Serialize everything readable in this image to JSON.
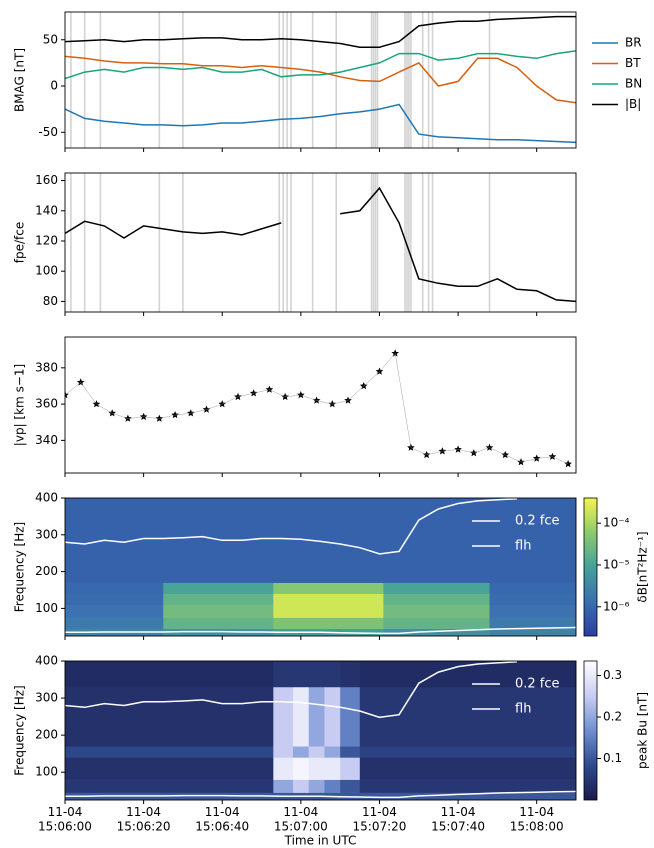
{
  "chart_data": [
    {
      "type": "line",
      "ylabel": "BMAG [nT]",
      "xlim": [
        0,
        130
      ],
      "ylim": [
        -67,
        80
      ],
      "yticks": [
        -50,
        0,
        50
      ],
      "legend": "outside right",
      "x": [
        0,
        5,
        10,
        15,
        20,
        25,
        30,
        35,
        40,
        45,
        50,
        55,
        60,
        65,
        70,
        75,
        80,
        85,
        90,
        95,
        100,
        105,
        110,
        115,
        120,
        125,
        130
      ],
      "series": [
        {
          "name": "BR",
          "color": "#1f77b4",
          "values": [
            -25,
            -35,
            -38,
            -40,
            -42,
            -42,
            -43,
            -42,
            -40,
            -40,
            -38,
            -36,
            -35,
            -33,
            -30,
            -28,
            -25,
            -20,
            -52,
            -55,
            -56,
            -57,
            -58,
            -58,
            -59,
            -60,
            -61
          ]
        },
        {
          "name": "BT",
          "color": "#d95f0e",
          "values": [
            32,
            30,
            27,
            25,
            25,
            24,
            24,
            22,
            22,
            20,
            22,
            20,
            18,
            15,
            10,
            6,
            5,
            15,
            25,
            0,
            5,
            30,
            30,
            20,
            0,
            -15,
            -18
          ]
        },
        {
          "name": "BN",
          "color": "#17a57a",
          "values": [
            8,
            15,
            18,
            15,
            20,
            20,
            18,
            20,
            15,
            15,
            18,
            10,
            12,
            12,
            15,
            20,
            25,
            35,
            35,
            28,
            30,
            35,
            35,
            32,
            30,
            35,
            38
          ]
        },
        {
          "name": "|B|",
          "color": "#000000",
          "values": [
            48,
            49,
            50,
            48,
            50,
            50,
            51,
            52,
            52,
            50,
            50,
            51,
            50,
            48,
            46,
            42,
            42,
            48,
            65,
            68,
            70,
            70,
            72,
            73,
            74,
            75,
            75
          ]
        }
      ],
      "shaded_times": [
        1.5,
        5,
        9,
        24,
        30,
        54.5,
        55.5,
        56.5,
        57.5,
        63,
        69,
        78,
        78.5,
        79,
        79.5,
        86.5,
        87,
        87.5,
        88,
        91,
        92.5,
        93.5,
        108
      ],
      "shade_color": "#d3d3d3"
    },
    {
      "type": "line",
      "ylabel": "fpe/fce",
      "xlim": [
        0,
        130
      ],
      "ylim": [
        73,
        165
      ],
      "yticks": [
        80,
        100,
        120,
        140,
        160
      ],
      "x": [
        0,
        5,
        10,
        15,
        20,
        25,
        30,
        35,
        40,
        45,
        50,
        55,
        60,
        65,
        70,
        75,
        80,
        85,
        90,
        95,
        100,
        105,
        110,
        115,
        120,
        125,
        130
      ],
      "series": [
        {
          "color": "#000000",
          "values": [
            125,
            133,
            130,
            122,
            130,
            128,
            126,
            125,
            126,
            124,
            128,
            132,
            null,
            null,
            138,
            140,
            155,
            132,
            95,
            92,
            90,
            90,
            95,
            88,
            87,
            81,
            80
          ]
        }
      ],
      "shaded_times": [
        1.5,
        5,
        9,
        24,
        30,
        54.5,
        55.5,
        56.5,
        57.5,
        63,
        69,
        78,
        78.5,
        79,
        79.5,
        86.5,
        87,
        87.5,
        88,
        91,
        92.5,
        93.5,
        108
      ],
      "shade_color": "#d3d3d3"
    },
    {
      "type": "scatter",
      "ylabel": "|vp| [km s−1]",
      "xlim": [
        0,
        130
      ],
      "ylim": [
        322,
        397
      ],
      "yticks": [
        340,
        360,
        380
      ],
      "marker": "star",
      "color": "#000000",
      "x": [
        0,
        4,
        8,
        12,
        16,
        20,
        24,
        28,
        32,
        36,
        40,
        44,
        48,
        52,
        56,
        60,
        64,
        68,
        72,
        76,
        80,
        84,
        88,
        92,
        96,
        100,
        104,
        108,
        112,
        116,
        120,
        124,
        128
      ],
      "values": [
        365,
        372,
        360,
        355,
        352,
        353,
        352,
        354,
        355,
        357,
        360,
        364,
        366,
        368,
        364,
        365,
        362,
        360,
        362,
        370,
        378,
        388,
        336,
        332,
        334,
        335,
        333,
        336,
        332,
        328,
        330,
        331,
        327
      ]
    },
    {
      "type": "heatmap",
      "ylabel": "Frequency [Hz]",
      "xlim": [
        0,
        130
      ],
      "ylim": [
        25,
        400
      ],
      "yticks": [
        100,
        200,
        300,
        400
      ],
      "zscale": "log",
      "zlim": [
        2e-07,
        0.0004
      ],
      "colorbar_label": "δB[nT²Hz⁻¹]",
      "zticks": [
        {
          "value": 1e-06,
          "label": "10⁻⁶"
        },
        {
          "value": 1e-05,
          "label": "10⁻⁵"
        },
        {
          "value": 0.0001,
          "label": "10⁻⁴"
        }
      ],
      "colormap": [
        "#2c3e9e",
        "#3a6fb0",
        "#46a09a",
        "#8ccb6e",
        "#f5f54a"
      ],
      "x_edges": [
        0,
        25,
        53,
        81,
        108,
        130
      ],
      "y_edges": [
        25,
        45,
        75,
        110,
        140,
        170,
        400
      ],
      "z": [
        [
          3e-06,
          2e-06,
          1.5e-06,
          1.2e-06,
          1e-06,
          8e-07
        ],
        [
          5e-06,
          2e-05,
          3e-05,
          2e-05,
          1e-05,
          8e-07
        ],
        [
          8e-06,
          4e-05,
          0.0002,
          0.0002,
          5e-05,
          8e-07
        ],
        [
          5e-06,
          2e-05,
          3e-05,
          2e-05,
          1e-05,
          8e-07
        ],
        [
          3e-06,
          2e-06,
          1.5e-06,
          1.2e-06,
          1e-06,
          8e-07
        ]
      ],
      "legend": "upper right",
      "x": [
        0,
        5,
        10,
        15,
        20,
        25,
        30,
        35,
        40,
        45,
        50,
        55,
        60,
        65,
        70,
        75,
        80,
        85,
        90,
        95,
        100,
        105,
        110,
        115,
        120,
        125,
        130
      ],
      "series": [
        {
          "name": "0.2 fce",
          "color": "#ffffff",
          "values": [
            280,
            275,
            285,
            280,
            290,
            290,
            292,
            295,
            285,
            285,
            290,
            290,
            288,
            282,
            275,
            265,
            248,
            255,
            340,
            370,
            385,
            392,
            395,
            398,
            null,
            null,
            null
          ]
        },
        {
          "name": "flh",
          "color": "#ffffff",
          "values": [
            35,
            35,
            36,
            36,
            36,
            36,
            37,
            37,
            37,
            36,
            36,
            35,
            35,
            35,
            34,
            33,
            32,
            32,
            36,
            38,
            40,
            42,
            44,
            45,
            46,
            47,
            48
          ]
        }
      ]
    },
    {
      "type": "heatmap",
      "ylabel": "Frequency [Hz]",
      "xlabel": "Time in UTC",
      "xlim": [
        0,
        130
      ],
      "ylim": [
        25,
        400
      ],
      "yticks": [
        100,
        200,
        300,
        400
      ],
      "zscale": "linear",
      "zlim": [
        0,
        0.335
      ],
      "colorbar_label": "peak Bu [nT]",
      "zticks": [
        0.1,
        0.2,
        0.3
      ],
      "colormap": [
        "#1b1b4d",
        "#2d4a8c",
        "#6f8fd0",
        "#c9cdf3",
        "#ffffff"
      ],
      "x_edges": [
        0,
        53,
        58,
        62,
        66,
        70,
        75,
        130
      ],
      "y_edges": [
        25,
        45,
        80,
        140,
        170,
        330,
        400
      ],
      "z": [
        [
          0.1,
          0.05,
          0.04,
          0.08,
          0.04,
          0.03
        ],
        [
          0.1,
          0.2,
          0.3,
          0.25,
          0.25,
          0.05
        ],
        [
          0.1,
          0.25,
          0.32,
          0.2,
          0.3,
          0.05
        ],
        [
          0.1,
          0.2,
          0.3,
          0.25,
          0.2,
          0.05
        ],
        [
          0.1,
          0.15,
          0.3,
          0.2,
          0.25,
          0.05
        ],
        [
          0.1,
          0.1,
          0.25,
          0.1,
          0.15,
          0.04
        ],
        [
          0.1,
          0.05,
          0.04,
          0.07,
          0.05,
          0.03
        ]
      ],
      "legend": "upper right",
      "xticks": [
        {
          "value": 0,
          "label": "11-04\n15:06:00"
        },
        {
          "value": 20,
          "label": "11-04\n15:06:20"
        },
        {
          "value": 40,
          "label": "11-04\n15:06:40"
        },
        {
          "value": 60,
          "label": "11-04\n15:07:00"
        },
        {
          "value": 80,
          "label": "11-04\n15:07:20"
        },
        {
          "value": 100,
          "label": "11-04\n15:07:40"
        },
        {
          "value": 120,
          "label": "11-04\n15:08:00"
        }
      ],
      "x": [
        0,
        5,
        10,
        15,
        20,
        25,
        30,
        35,
        40,
        45,
        50,
        55,
        60,
        65,
        70,
        75,
        80,
        85,
        90,
        95,
        100,
        105,
        110,
        115,
        120,
        125,
        130
      ],
      "series": [
        {
          "name": "0.2 fce",
          "color": "#ffffff",
          "values": [
            280,
            275,
            285,
            280,
            290,
            290,
            292,
            295,
            285,
            285,
            290,
            290,
            288,
            282,
            275,
            265,
            248,
            255,
            340,
            370,
            385,
            392,
            395,
            398,
            null,
            null,
            null
          ]
        },
        {
          "name": "flh",
          "color": "#ffffff",
          "values": [
            35,
            35,
            36,
            36,
            36,
            36,
            37,
            37,
            37,
            36,
            36,
            35,
            35,
            35,
            34,
            33,
            32,
            32,
            36,
            38,
            40,
            42,
            44,
            45,
            46,
            47,
            48
          ]
        }
      ]
    }
  ]
}
